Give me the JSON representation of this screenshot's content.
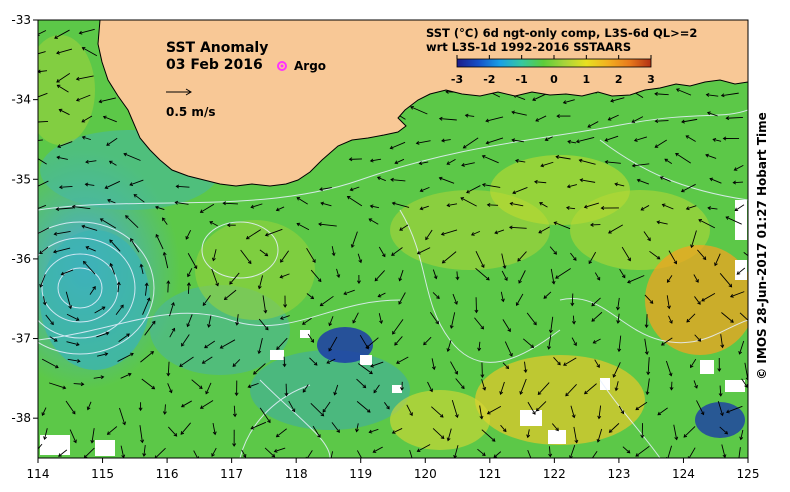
{
  "map": {
    "title": "SST Anomaly",
    "date": "03 Feb 2016",
    "argo_label": "Argo",
    "scale_arrow_label": "0.5 m/s",
    "product_line1": "SST (°C) 6d ngt-only comp, L3S-6d QL>=2",
    "product_line2": "wrt L3S-1d 1992-2016 SSTAARS",
    "credit": "© IMOS 28-Jun-2017 01:27 Hobart Time",
    "lon_ticks": [
      "114",
      "115",
      "116",
      "117",
      "118",
      "119",
      "120",
      "121",
      "122",
      "123",
      "124",
      "125"
    ],
    "lat_ticks": [
      "-33",
      "-34",
      "-35",
      "-36",
      "-37",
      "-38"
    ],
    "extent": {
      "lon_min": 114,
      "lon_max": 125,
      "lat_min": -38.5,
      "lat_max": -33
    }
  },
  "colorbar": {
    "ticks": [
      "-3",
      "-2",
      "-1",
      "0",
      "1",
      "2",
      "3"
    ],
    "range": [
      -3,
      3
    ],
    "colors": [
      "#1c1c8a",
      "#1550c8",
      "#1aa0e6",
      "#36c8a0",
      "#5ccc3a",
      "#a8d43a",
      "#e8e020",
      "#f2b020",
      "#e87a1c",
      "#b23014"
    ]
  },
  "colors": {
    "land": "#f8c896",
    "ocean_base": "#5cc848",
    "argo_marker": "#ff33ff",
    "current_arrow": "#000000",
    "contour": "#e8f0ff"
  }
}
